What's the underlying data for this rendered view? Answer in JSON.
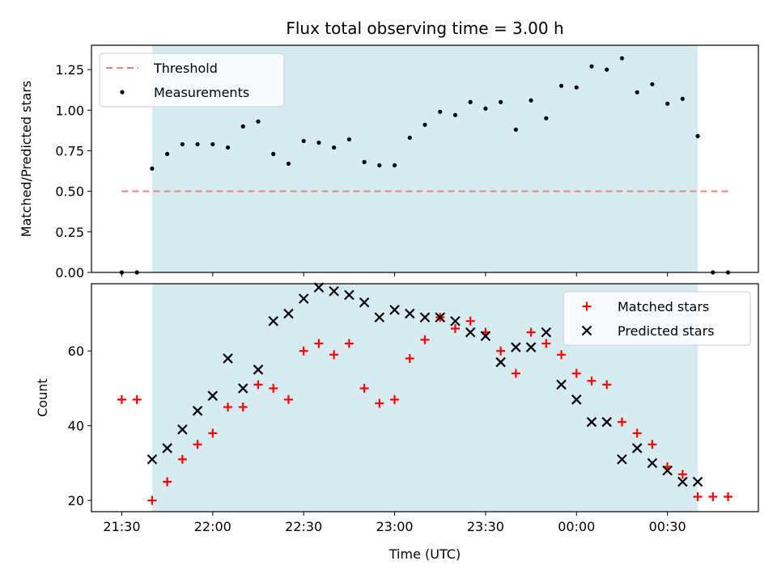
{
  "chart_data": [
    {
      "type": "scatter",
      "title": "Flux total observing time = 3.00 h",
      "xlabel": "",
      "ylabel": "Matched/Predicted stars",
      "ylim": [
        0,
        1.4
      ],
      "yticks": [
        "0.00",
        "0.25",
        "0.50",
        "0.75",
        "1.00",
        "1.25"
      ],
      "ytick_values": [
        0,
        0.25,
        0.5,
        0.75,
        1.0,
        1.25
      ],
      "shaded_region_minutes": [
        10,
        190
      ],
      "legend": {
        "placement": "top-left",
        "threshold_label": "Threshold",
        "measurements_label": "Measurements"
      },
      "threshold": {
        "value": 0.5,
        "x_range_minutes": [
          0,
          200
        ],
        "color": "#f08080"
      },
      "x_minutes": [
        0,
        5,
        10,
        15,
        20,
        25,
        30,
        35,
        40,
        45,
        50,
        55,
        60,
        65,
        70,
        75,
        80,
        85,
        90,
        95,
        100,
        105,
        110,
        115,
        120,
        125,
        130,
        135,
        140,
        145,
        150,
        155,
        160,
        165,
        170,
        175,
        180,
        185,
        190,
        195,
        200
      ],
      "values": [
        0,
        0,
        0.64,
        0.73,
        0.79,
        0.79,
        0.79,
        0.77,
        0.9,
        0.93,
        0.73,
        0.67,
        0.81,
        0.8,
        0.77,
        0.82,
        0.68,
        0.66,
        0.66,
        0.83,
        0.91,
        0.99,
        0.97,
        1.05,
        1.01,
        1.05,
        0.88,
        1.06,
        0.95,
        1.15,
        1.14,
        1.27,
        1.25,
        1.32,
        1.11,
        1.16,
        1.04,
        1.07,
        0.84,
        0,
        0
      ]
    },
    {
      "type": "scatter",
      "title": "",
      "xlabel": "Time (UTC)",
      "ylabel": "Count",
      "ylim": [
        17,
        78
      ],
      "yticks": [
        "20",
        "40",
        "60"
      ],
      "ytick_values": [
        20,
        40,
        60
      ],
      "x_range_minutes": [
        -10,
        210
      ],
      "xticks": [
        "21:30",
        "22:00",
        "22:30",
        "23:00",
        "23:30",
        "00:00",
        "00:30"
      ],
      "xtick_minutes": [
        0,
        30,
        60,
        90,
        120,
        150,
        180
      ],
      "shaded_region_minutes": [
        10,
        190
      ],
      "legend": {
        "placement": "top-right"
      },
      "series": [
        {
          "name": "Matched stars",
          "marker": "plus",
          "color": "#ff0000",
          "x_minutes": [
            0,
            5,
            10,
            15,
            20,
            25,
            30,
            35,
            40,
            45,
            50,
            55,
            60,
            65,
            70,
            75,
            80,
            85,
            90,
            95,
            100,
            105,
            110,
            115,
            120,
            125,
            130,
            135,
            140,
            145,
            150,
            155,
            160,
            165,
            170,
            175,
            180,
            185,
            190,
            195,
            200
          ],
          "values": [
            47,
            47,
            20,
            25,
            31,
            35,
            38,
            45,
            45,
            51,
            50,
            47,
            60,
            62,
            59,
            62,
            50,
            46,
            47,
            58,
            63,
            69,
            66,
            68,
            65,
            60,
            54,
            65,
            62,
            59,
            54,
            52,
            51,
            41,
            38,
            35,
            29,
            27,
            21,
            21,
            21
          ]
        },
        {
          "name": "Predicted stars",
          "marker": "x",
          "color": "#000000",
          "x_minutes": [
            10,
            15,
            20,
            25,
            30,
            35,
            40,
            45,
            50,
            55,
            60,
            65,
            70,
            75,
            80,
            85,
            90,
            95,
            100,
            105,
            110,
            115,
            120,
            125,
            130,
            135,
            140,
            145,
            150,
            155,
            160,
            165,
            170,
            175,
            180,
            185,
            190
          ],
          "values": [
            31,
            34,
            39,
            44,
            48,
            58,
            50,
            55,
            68,
            70,
            74,
            77,
            76,
            75,
            73,
            69,
            71,
            70,
            69,
            69,
            68,
            65,
            64,
            57,
            61,
            61,
            65,
            51,
            47,
            41,
            41,
            31,
            34,
            30,
            28,
            25,
            25
          ]
        }
      ]
    }
  ]
}
